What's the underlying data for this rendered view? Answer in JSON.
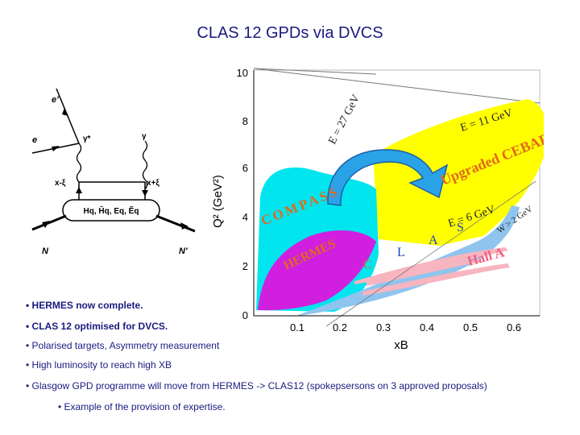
{
  "title": "CLAS 12 GPDs via DVCS",
  "diagram": {
    "e_prime": "e'",
    "e": "e",
    "gamma_star": "γ*",
    "gamma": "γ",
    "x_minus_xi": "x-ξ",
    "x_plus_xi": "x+ξ",
    "gpds": "Hq, H̃q, Eq, Ẽq",
    "N": "N",
    "N_prime": "N'"
  },
  "plot": {
    "ylabel": "Q² (GeV²)",
    "xlabel": "xB",
    "y_ticks": [
      "0",
      "2",
      "4",
      "6",
      "8",
      "10"
    ],
    "x_ticks": [
      "0.1",
      "0.2",
      "0.3",
      "0.4",
      "0.5",
      "0.6"
    ],
    "labels": {
      "e27": "E = 27 GeV",
      "e11": "E = 11 GeV",
      "e6": "E = 6 GeV",
      "w2": "W > 2 GeV",
      "upgraded": "Upgraded CEBAF",
      "compass": "COMPASS",
      "hermes": "HERMES",
      "clas_c": "C",
      "clas_l": "L",
      "clas_a": "A",
      "clas_s": "S",
      "halla": "Hall A"
    },
    "colors": {
      "compass": "#00e5ee",
      "hermes": "#d11fe0",
      "upgraded": "#ffff00",
      "clas": "#8fc4ee",
      "halla": "#f7b5c0",
      "arrow": "#2aa2e8",
      "labels": "#e06a1a"
    }
  },
  "bullets": [
    "• HERMES now complete.",
    "• CLAS 12 optimised for DVCS.",
    "• Polarised targets, Asymmetry measurement",
    "• High luminosity to reach high XB",
    "• Glasgow GPD programme will move from HERMES -> CLAS12 (spokepsersons on 3 approved  proposals)",
    "• Example of the provision of expertise."
  ]
}
